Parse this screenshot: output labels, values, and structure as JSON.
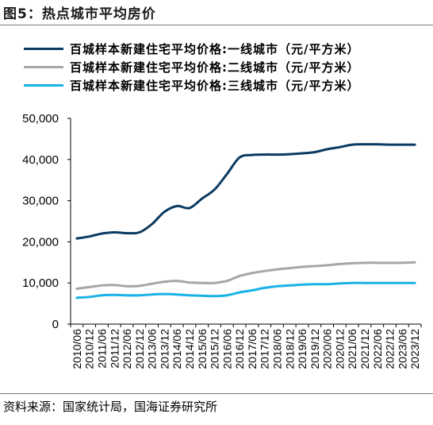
{
  "figure": {
    "title": "图5：热点城市平均房价",
    "source": "资料来源：国家统计局，国海证券研究所"
  },
  "chart_data": {
    "type": "line",
    "title": "热点城市平均房价",
    "xlabel": "",
    "ylabel": "",
    "ylim": [
      0,
      50000
    ],
    "yticks": [
      0,
      10000,
      20000,
      30000,
      40000,
      50000
    ],
    "ytick_labels": [
      "0",
      "10,000",
      "20,000",
      "30,000",
      "40,000",
      "50,000"
    ],
    "grid": false,
    "legend_position": "top-left",
    "x": [
      "2010/06",
      "2010/12",
      "2011/06",
      "2011/12",
      "2012/06",
      "2012/12",
      "2013/06",
      "2013/12",
      "2014/06",
      "2014/12",
      "2015/06",
      "2015/12",
      "2016/06",
      "2016/12",
      "2017/06",
      "2017/12",
      "2018/06",
      "2018/12",
      "2019/06",
      "2019/12",
      "2020/06",
      "2020/12",
      "2021/06",
      "2021/12",
      "2022/06",
      "2022/12",
      "2023/06",
      "2023/12"
    ],
    "series": [
      {
        "name": "百城样本新建住宅平均价格:一线城市（元/平方米）",
        "color": "#0b3a62",
        "values": [
          20800,
          21300,
          22000,
          22300,
          22100,
          22300,
          24300,
          27300,
          28700,
          28200,
          30500,
          32700,
          36500,
          40500,
          41100,
          41200,
          41200,
          41300,
          41500,
          41800,
          42500,
          43000,
          43600,
          43700,
          43700,
          43600,
          43600,
          43600
        ]
      },
      {
        "name": "百城样本新建住宅平均价格:二线城市（元/平方米）",
        "color": "#a6a6a6",
        "values": [
          8600,
          9000,
          9400,
          9500,
          9200,
          9300,
          9800,
          10300,
          10500,
          10100,
          10000,
          10000,
          10500,
          11700,
          12400,
          12900,
          13300,
          13600,
          13900,
          14100,
          14300,
          14600,
          14800,
          14900,
          14900,
          14900,
          14900,
          15000
        ]
      },
      {
        "name": "百城样本新建住宅平均价格:三线城市（元/平方米）",
        "color": "#19b2e6",
        "values": [
          6400,
          6600,
          7000,
          7100,
          7000,
          7000,
          7200,
          7300,
          7200,
          7000,
          6900,
          6800,
          7000,
          7700,
          8200,
          8800,
          9200,
          9400,
          9600,
          9700,
          9700,
          9900,
          10000,
          10000,
          10000,
          10000,
          10000,
          10000
        ]
      }
    ]
  }
}
